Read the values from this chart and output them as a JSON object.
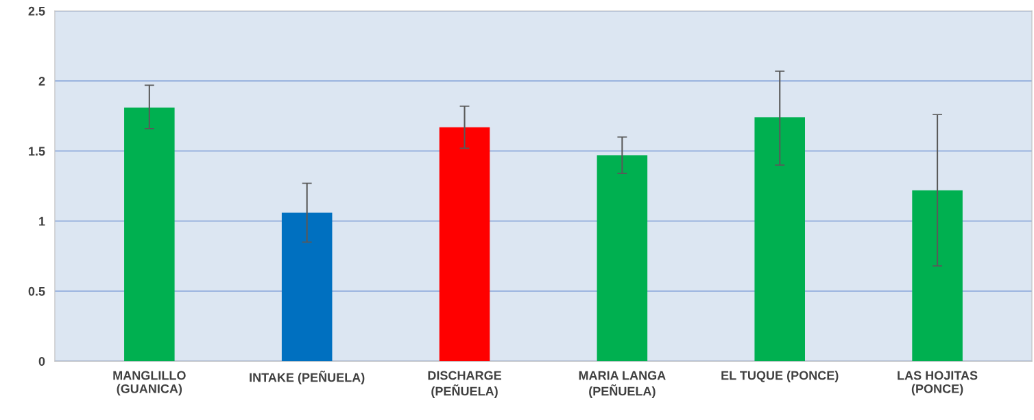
{
  "chart_data": {
    "type": "bar",
    "categories": [
      "MANGLILLO\n(GUANICA)",
      "INTAKE (PEÑUELA)",
      "DISCHARGE\n(PEÑUELA)",
      "MARIA LANGA\n(PEÑUELA)",
      "EL TUQUE (PONCE)",
      "LAS HOJITAS\n(PONCE)"
    ],
    "values": [
      1.81,
      1.06,
      1.67,
      1.47,
      1.74,
      1.22
    ],
    "colors": [
      "#00b050",
      "#0070c0",
      "#ff0000",
      "#00b050",
      "#00b050",
      "#00b050"
    ],
    "errors": [
      [
        1.66,
        1.97
      ],
      [
        0.85,
        1.27
      ],
      [
        1.52,
        1.82
      ],
      [
        1.34,
        1.6
      ],
      [
        1.4,
        2.07
      ],
      [
        0.68,
        1.76
      ]
    ],
    "ylim": [
      0,
      2.5
    ],
    "yticks": [
      0,
      0.5,
      1,
      1.5,
      2,
      2.5
    ],
    "grid": "y",
    "legend": false
  }
}
